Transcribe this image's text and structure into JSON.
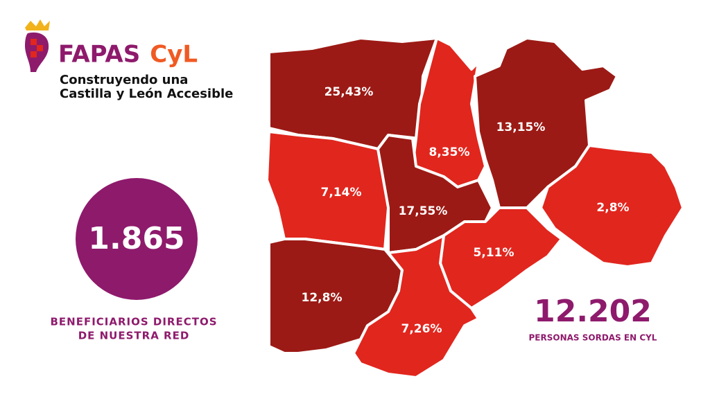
{
  "header": {
    "brand_main": "FAPAS",
    "brand_accent": "CyL",
    "tagline_1": "Construyendo una",
    "tagline_2": "Castilla y León Accesible"
  },
  "beneficiaries": {
    "number": "1.865",
    "caption_1": "BENEFICIARIOS DIRECTOS",
    "caption_2": "DE NUESTRA RED"
  },
  "total": {
    "number": "12.202",
    "caption": "PERSONAS SORDAS EN CYL"
  },
  "regions": [
    {
      "label": "25,43%"
    },
    {
      "label": "8,35%"
    },
    {
      "label": "13,15%"
    },
    {
      "label": "7,14%"
    },
    {
      "label": "17,55%"
    },
    {
      "label": "2,8%"
    },
    {
      "label": "5,11%"
    },
    {
      "label": "12,8%"
    },
    {
      "label": "7,26%"
    }
  ]
}
